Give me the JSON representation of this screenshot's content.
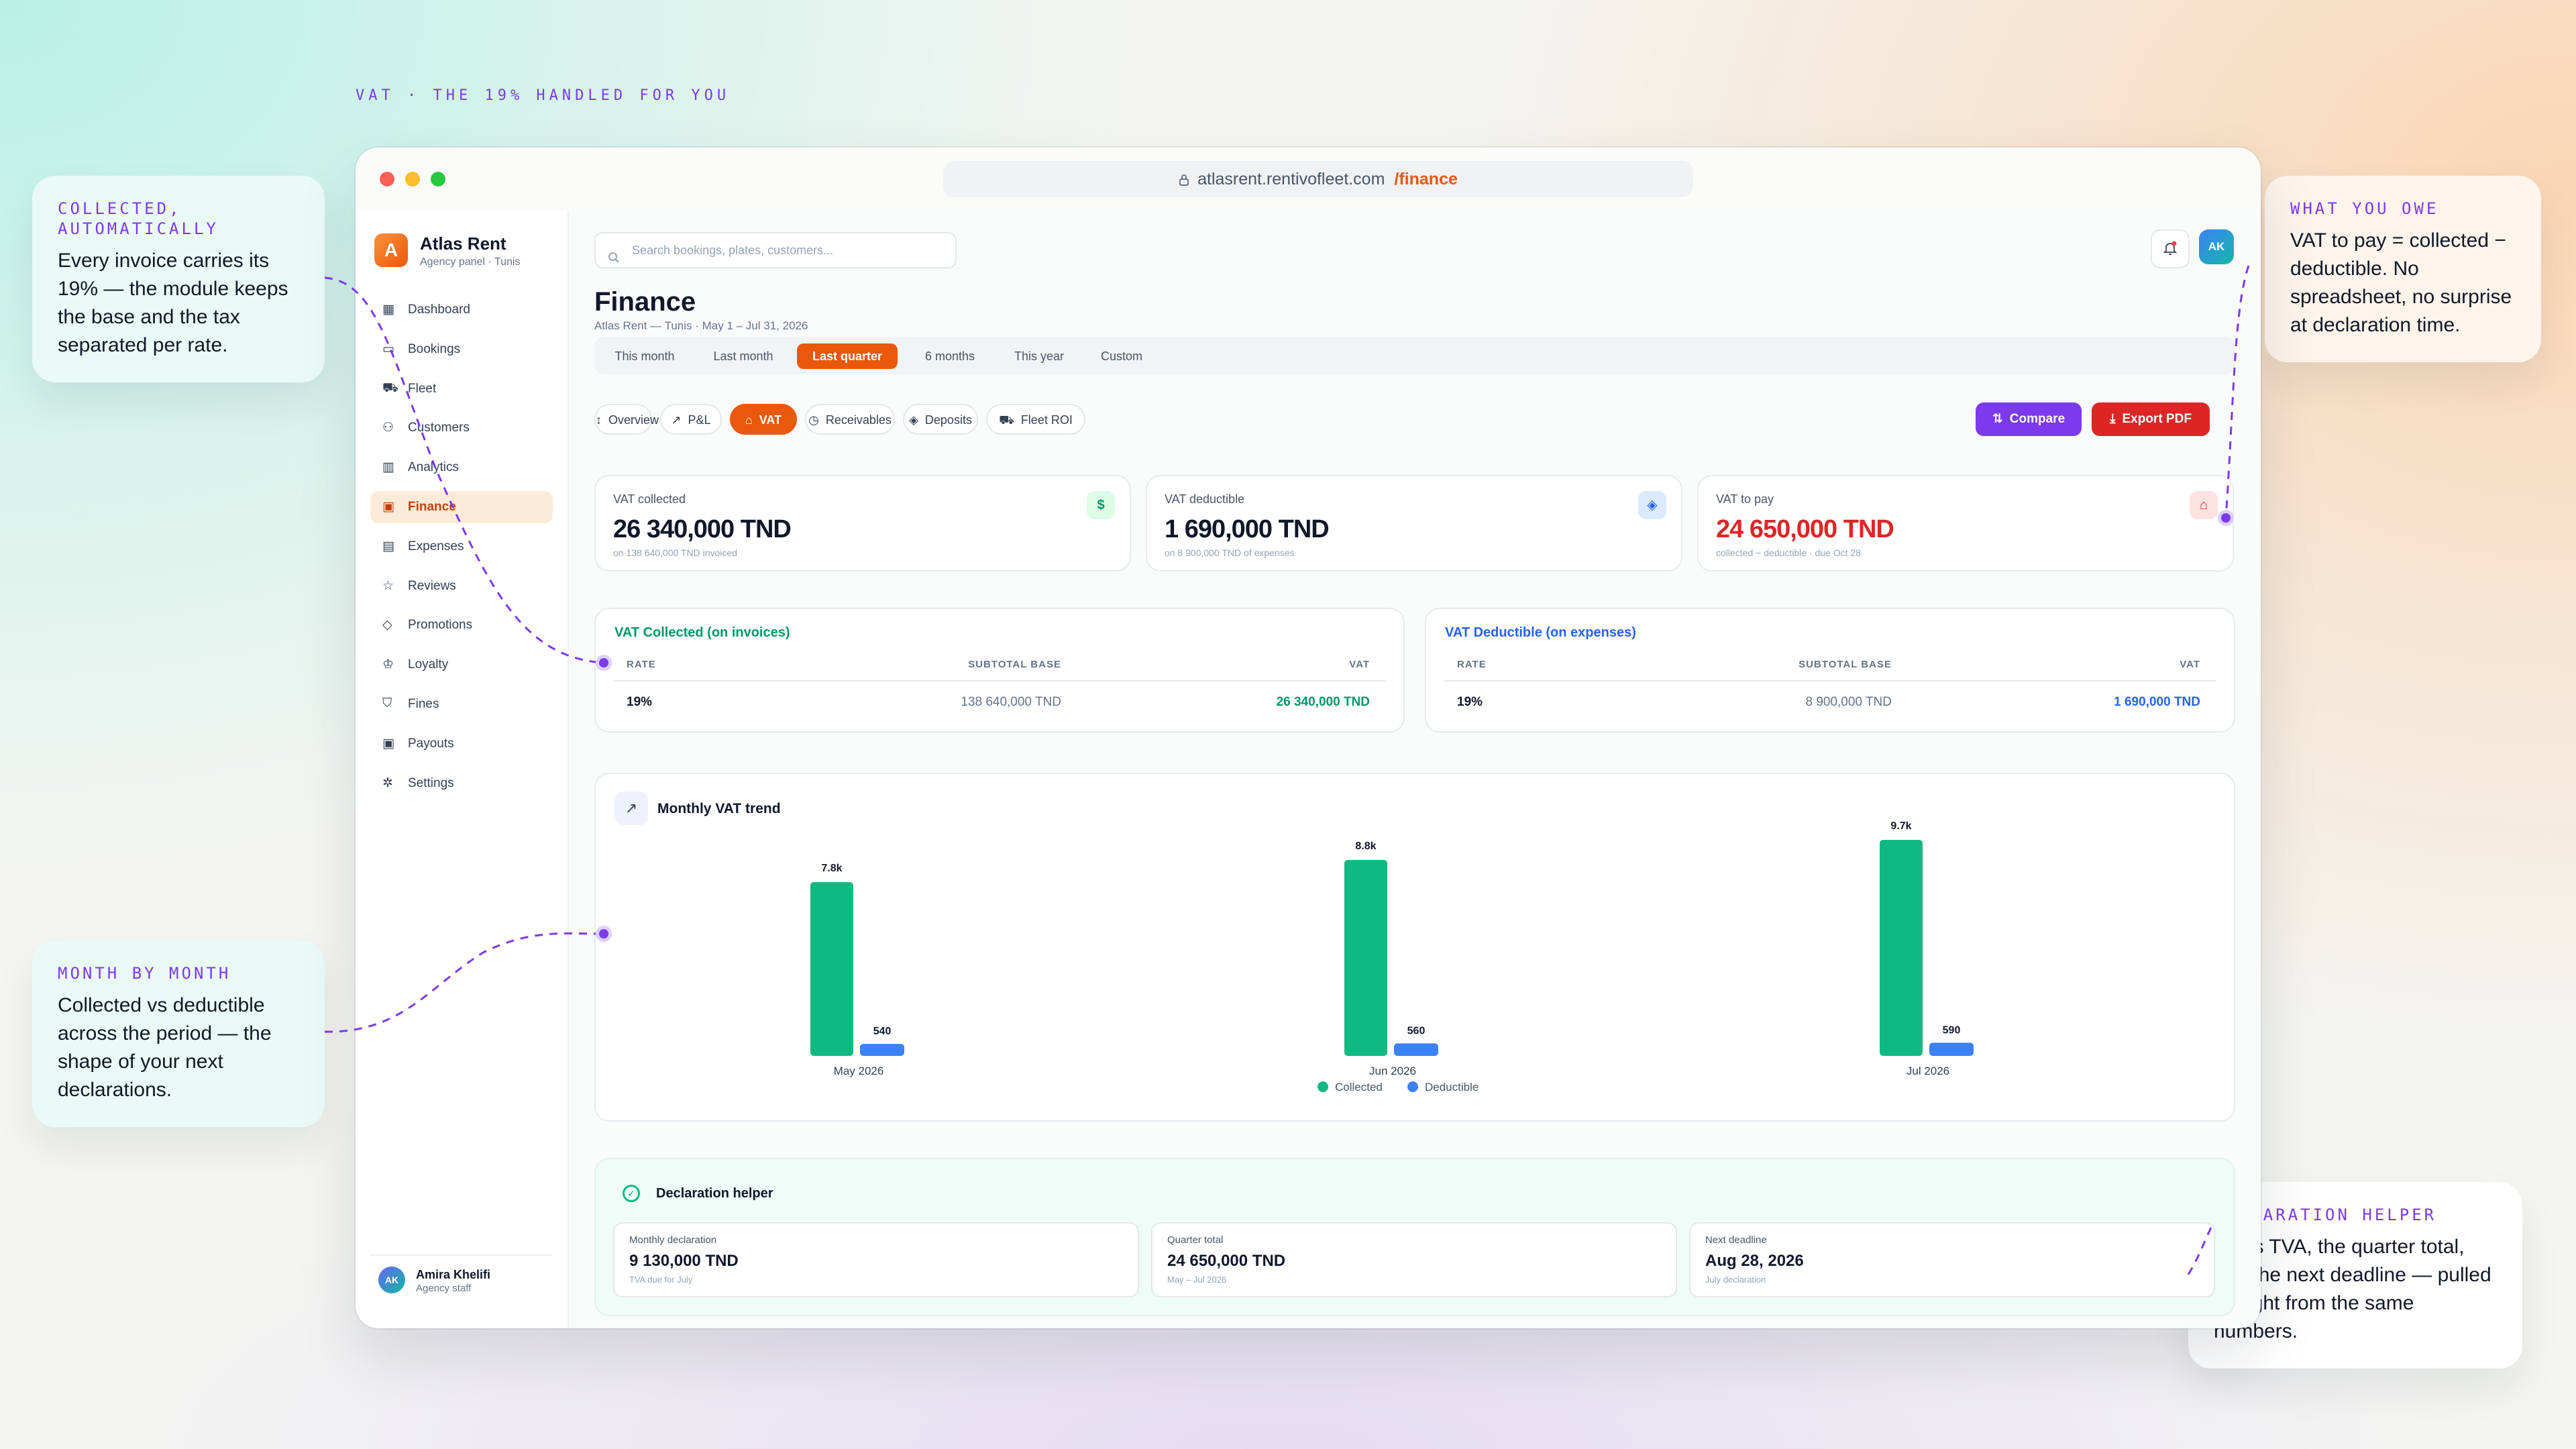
{
  "caption": "VAT · THE 19% HANDLED FOR YOU",
  "callouts": {
    "collected": {
      "title": "COLLECTED, AUTOMATICALLY",
      "body": "Every invoice carries its 19% — the module keeps the base and the tax separated per rate."
    },
    "monthly": {
      "title": "MONTH BY MONTH",
      "body": "Collected vs deductible across the period — the shape of your next declarations."
    },
    "owe": {
      "title": "WHAT YOU OWE",
      "body": "VAT to pay = collected − deductible. No spreadsheet, no surprise at declaration time."
    },
    "helper": {
      "title": "DECLARATION HELPER",
      "body": "July’s TVA, the quarter total, and the next deadline — pulled straight from the same numbers."
    }
  },
  "browser": {
    "url_host": "atlasrent.rentivofleet.com",
    "url_path": "/finance"
  },
  "brand": {
    "logo": "A",
    "name": "Atlas Rent",
    "sub": "Agency panel · Tunis"
  },
  "nav": [
    {
      "label": "Dashboard",
      "icon": "grid-icon"
    },
    {
      "label": "Bookings",
      "icon": "calendar-icon"
    },
    {
      "label": "Fleet",
      "icon": "car-icon"
    },
    {
      "label": "Customers",
      "icon": "users-icon"
    },
    {
      "label": "Analytics",
      "icon": "bar-chart-icon"
    },
    {
      "label": "Finance",
      "icon": "wallet-icon",
      "active": true
    },
    {
      "label": "Expenses",
      "icon": "receipt-icon"
    },
    {
      "label": "Reviews",
      "icon": "star-icon"
    },
    {
      "label": "Promotions",
      "icon": "tag-icon"
    },
    {
      "label": "Loyalty",
      "icon": "crown-icon"
    },
    {
      "label": "Fines",
      "icon": "shield-icon"
    },
    {
      "label": "Payouts",
      "icon": "wallet-icon"
    },
    {
      "label": "Settings",
      "icon": "gear-icon"
    }
  ],
  "user": {
    "initials": "AK",
    "name": "Amira Khelifi",
    "role": "Agency staff"
  },
  "search": {
    "placeholder": "Search bookings, plates, customers..."
  },
  "header": {
    "avatar": "AK",
    "title": "Finance",
    "subtitle": "Atlas Rent — Tunis · May 1 – Jul 31, 2026"
  },
  "periods": [
    "This month",
    "Last month",
    "Last quarter",
    "6 months",
    "This year",
    "Custom"
  ],
  "active_period": "Last quarter",
  "tabs": [
    {
      "label": "Overview",
      "icon": "↕"
    },
    {
      "label": "P&L",
      "icon": "↗"
    },
    {
      "label": "VAT",
      "icon": "⌂",
      "active": true
    },
    {
      "label": "Receivables",
      "icon": "◷"
    },
    {
      "label": "Deposits",
      "icon": "◈"
    },
    {
      "label": "Fleet ROI",
      "icon": "⛟"
    }
  ],
  "actions": {
    "compare": "Compare",
    "export": "Export PDF"
  },
  "kpis": [
    {
      "label": "VAT collected",
      "value": "26 340,000 TND",
      "sub": "on 138 640,000 TND invoiced",
      "icon": "$",
      "color": "#0f172a"
    },
    {
      "label": "VAT deductible",
      "value": "1 690,000 TND",
      "sub": "on 8 900,000 TND of expenses",
      "icon": "◈",
      "color": "#0f172a"
    },
    {
      "label": "VAT to pay",
      "value": "24 650,000 TND",
      "sub": "collected − deductible · due Oct 28",
      "icon": "⌂",
      "color": "#dc2626"
    }
  ],
  "vat_tables": {
    "collected": {
      "title": "VAT Collected (on invoices)",
      "headers": [
        "RATE",
        "SUBTOTAL BASE",
        "VAT"
      ],
      "row": [
        "19%",
        "138 640,000 TND",
        "26 340,000 TND"
      ],
      "accent": "#059669"
    },
    "deductible": {
      "title": "VAT Deductible (on expenses)",
      "headers": [
        "RATE",
        "SUBTOTAL BASE",
        "VAT"
      ],
      "row": [
        "19%",
        "8 900,000 TND",
        "1 690,000 TND"
      ],
      "accent": "#2563eb"
    }
  },
  "trend": {
    "title": "Monthly VAT trend"
  },
  "chart_data": {
    "type": "bar",
    "title": "Monthly VAT trend",
    "categories": [
      "May 2026",
      "Jun 2026",
      "Jul 2026"
    ],
    "series": [
      {
        "name": "Collected",
        "values": [
          7800,
          8800,
          9700
        ],
        "labels": [
          "7.8k",
          "8.8k",
          "9.7k"
        ],
        "color": "#10b981"
      },
      {
        "name": "Deductible",
        "values": [
          540,
          560,
          590
        ],
        "labels": [
          "540",
          "560",
          "590"
        ],
        "color": "#3b82f6"
      }
    ],
    "ylim": [
      0,
      10000
    ],
    "legend": "bottom-center",
    "grid": false
  },
  "declaration": {
    "title": "Declaration helper",
    "boxes": [
      {
        "label": "Monthly declaration",
        "value": "9 130,000 TND",
        "sub": "TVA due for July"
      },
      {
        "label": "Quarter total",
        "value": "24 650,000 TND",
        "sub": "May – Jul 2026"
      },
      {
        "label": "Next deadline",
        "value": "Aug 28, 2026",
        "sub": "July declaration"
      }
    ]
  }
}
